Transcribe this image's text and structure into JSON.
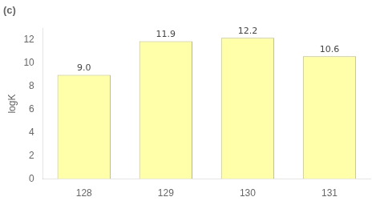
{
  "chart_data": {
    "type": "bar",
    "title": "(c)",
    "categories": [
      "128",
      "129",
      "130",
      "131"
    ],
    "values": [
      9.0,
      11.9,
      12.2,
      10.6
    ],
    "value_labels": [
      "9.0",
      "11.9",
      "12.2",
      "10.6"
    ],
    "data_labels": true,
    "color": "#FFFFAA",
    "ylabel": "logK",
    "ylim": [
      0,
      13
    ],
    "yticks": [
      0,
      2,
      4,
      6,
      8,
      10,
      12
    ],
    "grid": false
  }
}
